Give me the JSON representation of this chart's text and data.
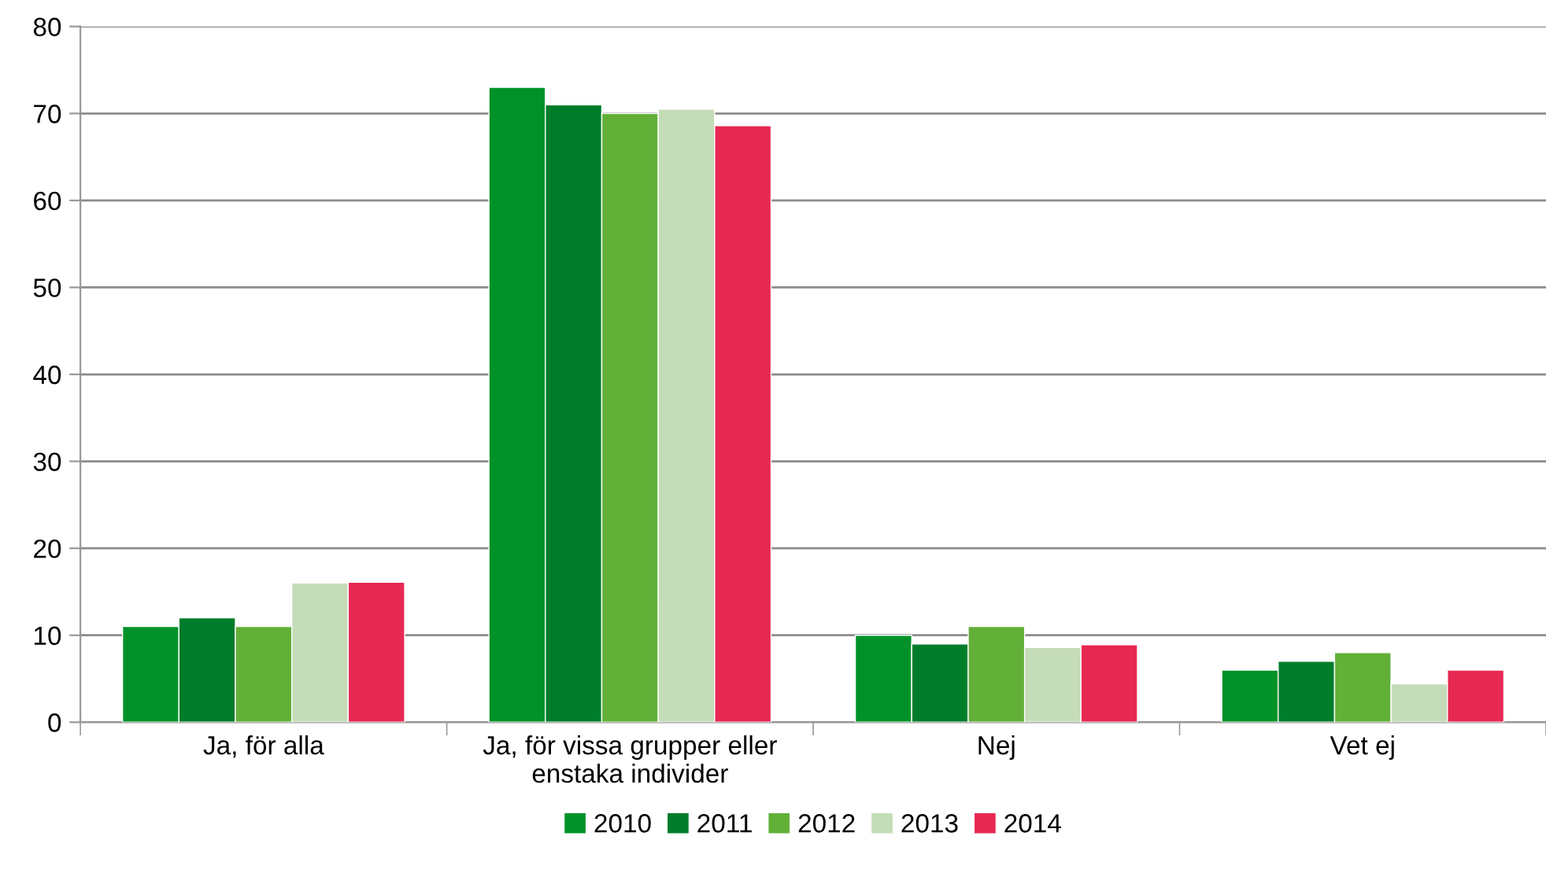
{
  "chart_data": {
    "type": "bar",
    "categories": [
      "Ja, för alla",
      "Ja, för vissa grupper eller\nenstaka individer",
      "Nej",
      "Vet ej"
    ],
    "series": [
      {
        "name": "2010",
        "color": "#009229",
        "values": [
          11,
          73,
          10,
          6
        ]
      },
      {
        "name": "2011",
        "color": "#007d2b",
        "values": [
          12,
          71,
          9,
          7
        ]
      },
      {
        "name": "2012",
        "color": "#62b038",
        "values": [
          11,
          70,
          11,
          8
        ]
      },
      {
        "name": "2013",
        "color": "#c4dcb7",
        "values": [
          16,
          70.5,
          8.6,
          4.4
        ]
      },
      {
        "name": "2014",
        "color": "#e72852",
        "values": [
          16.1,
          68.6,
          8.9,
          6
        ]
      }
    ],
    "ylim": [
      0,
      80
    ],
    "yticks": [
      0,
      10,
      20,
      30,
      40,
      50,
      60,
      70,
      80
    ],
    "grid": "y",
    "legend": "bottom"
  }
}
